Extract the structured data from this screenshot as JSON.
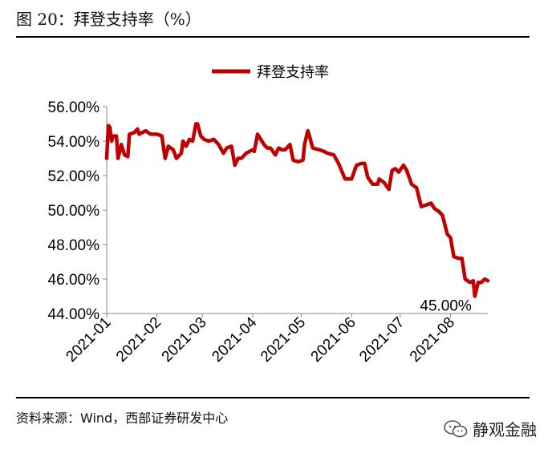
{
  "figure": {
    "title": "图 20：拜登支持率（%）",
    "source": "资料来源：Wind，西部证券研发中心"
  },
  "watermark": {
    "text": "静观金融",
    "icon": "wechat-icon"
  },
  "colors": {
    "series": "#C00000",
    "axis": "#888888",
    "text": "#000000"
  },
  "chart_data": {
    "type": "line",
    "title": "",
    "xlabel": "",
    "ylabel": "",
    "ylim": [
      44,
      56
    ],
    "yticks": [
      "44.00%",
      "46.00%",
      "48.00%",
      "50.00%",
      "52.00%",
      "54.00%",
      "56.00%"
    ],
    "xlim": [
      "2021-01-01",
      "2021-08-24"
    ],
    "xticks": [
      {
        "label": "2021-01",
        "date": "2021-01-01"
      },
      {
        "label": "2021-02",
        "date": "2021-02-01"
      },
      {
        "label": "2021-03",
        "date": "2021-03-01"
      },
      {
        "label": "2021-04",
        "date": "2021-04-01"
      },
      {
        "label": "2021-05",
        "date": "2021-05-01"
      },
      {
        "label": "2021-06",
        "date": "2021-06-01"
      },
      {
        "label": "2021-07",
        "date": "2021-07-01"
      },
      {
        "label": "2021-08",
        "date": "2021-08-01"
      }
    ],
    "grid": false,
    "legend_position": "top-center",
    "annotation": {
      "text": "45.00%",
      "date": "2021-08-16",
      "value": 45.0
    },
    "series": [
      {
        "name": "拜登支持率",
        "points": [
          [
            "2021-01-01",
            53.0
          ],
          [
            "2021-01-02",
            54.9
          ],
          [
            "2021-01-03",
            54.8
          ],
          [
            "2021-01-04",
            54.0
          ],
          [
            "2021-01-05",
            54.3
          ],
          [
            "2021-01-07",
            54.3
          ],
          [
            "2021-01-08",
            53.0
          ],
          [
            "2021-01-10",
            53.8
          ],
          [
            "2021-01-12",
            53.2
          ],
          [
            "2021-01-14",
            53.1
          ],
          [
            "2021-01-15",
            54.4
          ],
          [
            "2021-01-18",
            54.5
          ],
          [
            "2021-01-20",
            54.7
          ],
          [
            "2021-01-21",
            54.4
          ],
          [
            "2021-01-25",
            54.6
          ],
          [
            "2021-01-28",
            54.4
          ],
          [
            "2021-02-01",
            54.4
          ],
          [
            "2021-02-04",
            54.3
          ],
          [
            "2021-02-06",
            53.0
          ],
          [
            "2021-02-08",
            53.7
          ],
          [
            "2021-02-11",
            53.5
          ],
          [
            "2021-02-13",
            53.0
          ],
          [
            "2021-02-16",
            53.3
          ],
          [
            "2021-02-17",
            54.0
          ],
          [
            "2021-02-19",
            53.7
          ],
          [
            "2021-02-21",
            54.1
          ],
          [
            "2021-02-23",
            54.0
          ],
          [
            "2021-02-25",
            55.0
          ],
          [
            "2021-02-26",
            55.0
          ],
          [
            "2021-02-28",
            54.3
          ],
          [
            "2021-03-02",
            54.1
          ],
          [
            "2021-03-05",
            54.0
          ],
          [
            "2021-03-08",
            54.1
          ],
          [
            "2021-03-11",
            53.8
          ],
          [
            "2021-03-14",
            53.3
          ],
          [
            "2021-03-16",
            53.6
          ],
          [
            "2021-03-19",
            53.7
          ],
          [
            "2021-03-21",
            52.6
          ],
          [
            "2021-03-23",
            53.0
          ],
          [
            "2021-03-25",
            53.0
          ],
          [
            "2021-03-28",
            53.3
          ],
          [
            "2021-04-01",
            53.5
          ],
          [
            "2021-04-02",
            53.4
          ],
          [
            "2021-04-04",
            54.4
          ],
          [
            "2021-04-06",
            54.1
          ],
          [
            "2021-04-08",
            53.8
          ],
          [
            "2021-04-10",
            53.6
          ],
          [
            "2021-04-12",
            53.6
          ],
          [
            "2021-04-15",
            53.2
          ],
          [
            "2021-04-17",
            53.6
          ],
          [
            "2021-04-19",
            53.5
          ],
          [
            "2021-04-21",
            53.5
          ],
          [
            "2021-04-24",
            53.8
          ],
          [
            "2021-04-26",
            52.9
          ],
          [
            "2021-04-29",
            52.8
          ],
          [
            "2021-05-02",
            52.9
          ],
          [
            "2021-05-03",
            53.8
          ],
          [
            "2021-05-05",
            54.6
          ],
          [
            "2021-05-06",
            54.3
          ],
          [
            "2021-05-08",
            53.6
          ],
          [
            "2021-05-12",
            53.5
          ],
          [
            "2021-05-15",
            53.4
          ],
          [
            "2021-05-17",
            53.3
          ],
          [
            "2021-05-21",
            53.2
          ],
          [
            "2021-05-24",
            52.7
          ],
          [
            "2021-05-28",
            51.8
          ],
          [
            "2021-05-30",
            51.8
          ],
          [
            "2021-06-01",
            51.8
          ],
          [
            "2021-06-04",
            52.6
          ],
          [
            "2021-06-07",
            52.7
          ],
          [
            "2021-06-09",
            52.7
          ],
          [
            "2021-06-11",
            51.9
          ],
          [
            "2021-06-14",
            51.5
          ],
          [
            "2021-06-17",
            51.5
          ],
          [
            "2021-06-18",
            51.8
          ],
          [
            "2021-06-21",
            51.6
          ],
          [
            "2021-06-24",
            51.2
          ],
          [
            "2021-06-26",
            52.3
          ],
          [
            "2021-06-28",
            52.4
          ],
          [
            "2021-06-30",
            52.2
          ],
          [
            "2021-07-03",
            52.6
          ],
          [
            "2021-07-05",
            52.3
          ],
          [
            "2021-07-08",
            51.5
          ],
          [
            "2021-07-11",
            51.3
          ],
          [
            "2021-07-14",
            50.2
          ],
          [
            "2021-07-17",
            50.3
          ],
          [
            "2021-07-20",
            50.4
          ],
          [
            "2021-07-22",
            50.1
          ],
          [
            "2021-07-25",
            49.9
          ],
          [
            "2021-07-27",
            49.7
          ],
          [
            "2021-07-30",
            48.6
          ],
          [
            "2021-08-01",
            48.4
          ],
          [
            "2021-08-03",
            47.3
          ],
          [
            "2021-08-06",
            47.2
          ],
          [
            "2021-08-08",
            47.2
          ],
          [
            "2021-08-10",
            46.0
          ],
          [
            "2021-08-13",
            45.8
          ],
          [
            "2021-08-15",
            45.9
          ],
          [
            "2021-08-16",
            45.0
          ],
          [
            "2021-08-18",
            45.8
          ],
          [
            "2021-08-20",
            45.8
          ],
          [
            "2021-08-22",
            46.0
          ],
          [
            "2021-08-24",
            45.9
          ]
        ]
      }
    ]
  }
}
